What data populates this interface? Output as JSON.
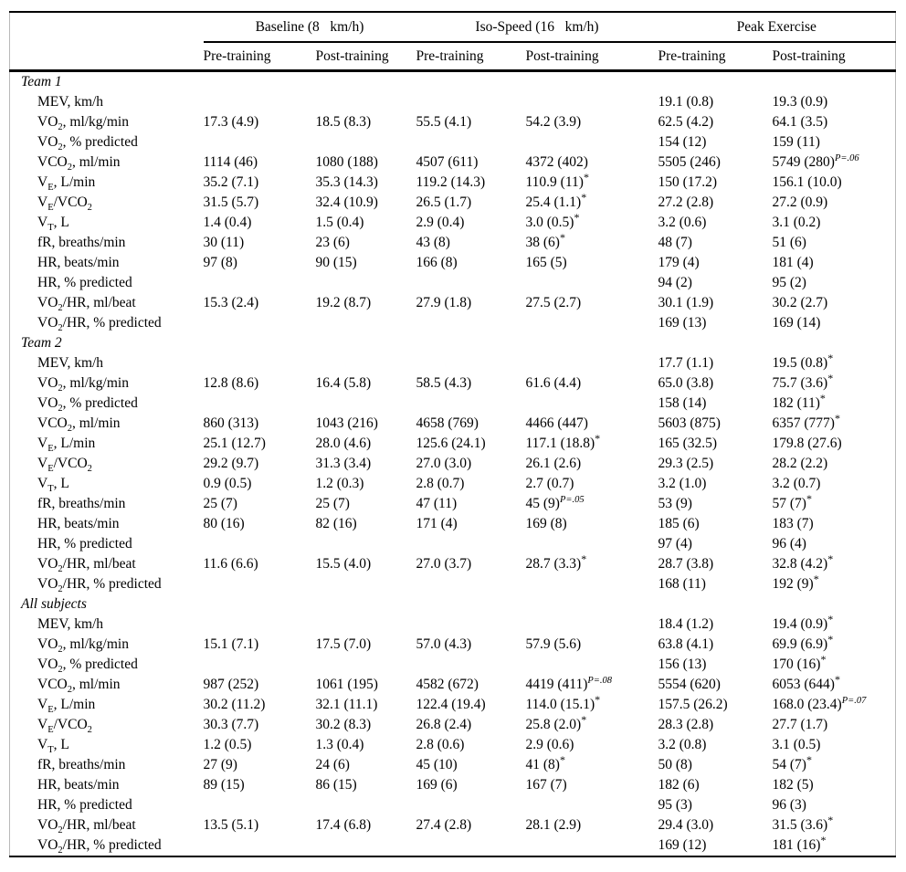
{
  "table": {
    "header": {
      "groups": [
        {
          "label": "Baseline (8   km/h)"
        },
        {
          "label": "Iso-Speed (16   km/h)"
        },
        {
          "label": "Peak Exercise"
        }
      ],
      "subheaders": [
        "Pre-training",
        "Post-training",
        "Pre-training",
        "Post-training",
        "Pre-training",
        "Post-training"
      ]
    },
    "sections": [
      {
        "title": "Team 1",
        "rows": [
          {
            "label": "MEV, km/h",
            "values": [
              "",
              "",
              "",
              "",
              "19.1 (0.8)",
              "19.3 (0.9)"
            ]
          },
          {
            "label": "VO~2~, ml/kg/min",
            "values": [
              "17.3 (4.9)",
              "18.5 (8.3)",
              "55.5 (4.1)",
              "54.2 (3.9)",
              "62.5 (4.2)",
              "64.1 (3.5)"
            ]
          },
          {
            "label": "VO~2~, % predicted",
            "values": [
              "",
              "",
              "",
              "",
              "154 (12)",
              "159 (11)"
            ]
          },
          {
            "label": "VCO~2~, ml/min",
            "values": [
              "1114 (46)",
              "1080 (188)",
              "4507 (611)",
              "4372 (402)",
              "5505 (246)",
              "5749 (280)^P=.06^"
            ]
          },
          {
            "label": "V~E~, L/min",
            "values": [
              "35.2 (7.1)",
              "35.3 (14.3)",
              "119.2 (14.3)",
              "110.9 (11)^*^",
              "150 (17.2)",
              "156.1 (10.0)"
            ]
          },
          {
            "label": "V~E~/VCO~2~",
            "values": [
              "31.5 (5.7)",
              "32.4 (10.9)",
              "26.5 (1.7)",
              "25.4 (1.1)^*^",
              "27.2 (2.8)",
              "27.2 (0.9)"
            ]
          },
          {
            "label": "V~T~, L",
            "values": [
              "1.4 (0.4)",
              "1.5 (0.4)",
              "2.9 (0.4)",
              "3.0 (0.5)^*^",
              "3.2 (0.6)",
              "3.1 (0.2)"
            ]
          },
          {
            "label": "fR, breaths/min",
            "values": [
              "30 (11)",
              "23 (6)",
              "43 (8)",
              "38 (6)^*^",
              "48 (7)",
              "51 (6)"
            ]
          },
          {
            "label": "HR, beats/min",
            "values": [
              "97 (8)",
              "90 (15)",
              "166 (8)",
              "165 (5)",
              "179 (4)",
              "181 (4)"
            ]
          },
          {
            "label": "HR, % predicted",
            "values": [
              "",
              "",
              "",
              "",
              "94 (2)",
              "95 (2)"
            ]
          },
          {
            "label": "VO~2~/HR, ml/beat",
            "values": [
              "15.3 (2.4)",
              "19.2 (8.7)",
              "27.9 (1.8)",
              "27.5 (2.7)",
              "30.1 (1.9)",
              "30.2 (2.7)"
            ]
          },
          {
            "label": "VO~2~/HR, % predicted",
            "values": [
              "",
              "",
              "",
              "",
              "169 (13)",
              "169 (14)"
            ]
          }
        ]
      },
      {
        "title": "Team 2",
        "rows": [
          {
            "label": "MEV, km/h",
            "values": [
              "",
              "",
              "",
              "",
              "17.7 (1.1)",
              "19.5 (0.8)^*^"
            ]
          },
          {
            "label": "VO~2~, ml/kg/min",
            "values": [
              "12.8 (8.6)",
              "16.4 (5.8)",
              "58.5 (4.3)",
              "61.6 (4.4)",
              "65.0 (3.8)",
              "75.7 (3.6)^*^"
            ]
          },
          {
            "label": "VO~2~, % predicted",
            "values": [
              "",
              "",
              "",
              "",
              "158 (14)",
              "182 (11)^*^"
            ]
          },
          {
            "label": "VCO~2~, ml/min",
            "values": [
              "860 (313)",
              "1043 (216)",
              "4658 (769)",
              "4466 (447)",
              "5603 (875)",
              "6357 (777)^*^"
            ]
          },
          {
            "label": "V~E~, L/min",
            "values": [
              "25.1 (12.7)",
              "28.0 (4.6)",
              "125.6 (24.1)",
              "117.1 (18.8)^*^",
              "165 (32.5)",
              "179.8 (27.6)"
            ]
          },
          {
            "label": "V~E~/VCO~2~",
            "values": [
              "29.2 (9.7)",
              "31.3 (3.4)",
              "27.0 (3.0)",
              "26.1 (2.6)",
              "29.3 (2.5)",
              "28.2 (2.2)"
            ]
          },
          {
            "label": "V~T~, L",
            "values": [
              "0.9 (0.5)",
              "1.2 (0.3)",
              "2.8 (0.7)",
              "2.7 (0.7)",
              "3.2 (1.0)",
              "3.2 (0.7)"
            ]
          },
          {
            "label": "fR, breaths/min",
            "values": [
              "25 (7)",
              "25 (7)",
              "47 (11)",
              "45 (9)^P=.05^",
              "53 (9)",
              "57 (7)^*^"
            ]
          },
          {
            "label": "HR, beats/min",
            "values": [
              "80 (16)",
              "82 (16)",
              "171 (4)",
              "169 (8)",
              "185 (6)",
              "183 (7)"
            ]
          },
          {
            "label": "HR, % predicted",
            "values": [
              "",
              "",
              "",
              "",
              "97 (4)",
              "96 (4)"
            ]
          },
          {
            "label": "VO~2~/HR, ml/beat",
            "values": [
              "11.6 (6.6)",
              "15.5 (4.0)",
              "27.0 (3.7)",
              "28.7 (3.3)^*^",
              "28.7 (3.8)",
              "32.8 (4.2)^*^"
            ]
          },
          {
            "label": "VO~2~/HR, % predicted",
            "values": [
              "",
              "",
              "",
              "",
              "168 (11)",
              "192 (9)^*^"
            ]
          }
        ]
      },
      {
        "title": "All subjects",
        "rows": [
          {
            "label": "MEV, km/h",
            "values": [
              "",
              "",
              "",
              "",
              "18.4 (1.2)",
              "19.4 (0.9)^*^"
            ]
          },
          {
            "label": "VO~2~, ml/kg/min",
            "values": [
              "15.1 (7.1)",
              "17.5 (7.0)",
              "57.0 (4.3)",
              "57.9 (5.6)",
              "63.8 (4.1)",
              "69.9 (6.9)^*^"
            ]
          },
          {
            "label": "VO~2~, % predicted",
            "values": [
              "",
              "",
              "",
              "",
              "156 (13)",
              "170 (16)^*^"
            ]
          },
          {
            "label": "VCO~2~, ml/min",
            "values": [
              "987 (252)",
              "1061 (195)",
              "4582 (672)",
              "4419 (411)^P=.08^",
              "5554 (620)",
              "6053 (644)^*^"
            ]
          },
          {
            "label": "V~E~, L/min",
            "values": [
              "30.2 (11.2)",
              "32.1 (11.1)",
              "122.4 (19.4)",
              "114.0 (15.1)^*^",
              "157.5 (26.2)",
              "168.0 (23.4)^P=.07^"
            ]
          },
          {
            "label": "V~E~/VCO~2~",
            "values": [
              "30.3 (7.7)",
              "30.2 (8.3)",
              "26.8 (2.4)",
              "25.8 (2.0)^*^",
              "28.3 (2.8)",
              "27.7 (1.7)"
            ]
          },
          {
            "label": "V~T~, L",
            "values": [
              "1.2 (0.5)",
              "1.3 (0.4)",
              "2.8 (0.6)",
              "2.9 (0.6)",
              "3.2 (0.8)",
              "3.1 (0.5)"
            ]
          },
          {
            "label": "fR, breaths/min",
            "values": [
              "27 (9)",
              "24 (6)",
              "45 (10)",
              "41 (8)^*^",
              "50 (8)",
              "54 (7)^*^"
            ]
          },
          {
            "label": "HR, beats/min",
            "values": [
              "89 (15)",
              "86 (15)",
              "169 (6)",
              "167 (7)",
              "182 (6)",
              "182 (5)"
            ]
          },
          {
            "label": "HR, % predicted",
            "values": [
              "",
              "",
              "",
              "",
              "95 (3)",
              "96 (3)"
            ]
          },
          {
            "label": "VO~2~/HR, ml/beat",
            "values": [
              "13.5 (5.1)",
              "17.4 (6.8)",
              "27.4 (2.8)",
              "28.1 (2.9)",
              "29.4 (3.0)",
              "31.5 (3.6)^*^"
            ]
          },
          {
            "label": "VO~2~/HR, % predicted",
            "values": [
              "",
              "",
              "",
              "",
              "169 (12)",
              "181 (16)^*^"
            ]
          }
        ]
      }
    ]
  }
}
